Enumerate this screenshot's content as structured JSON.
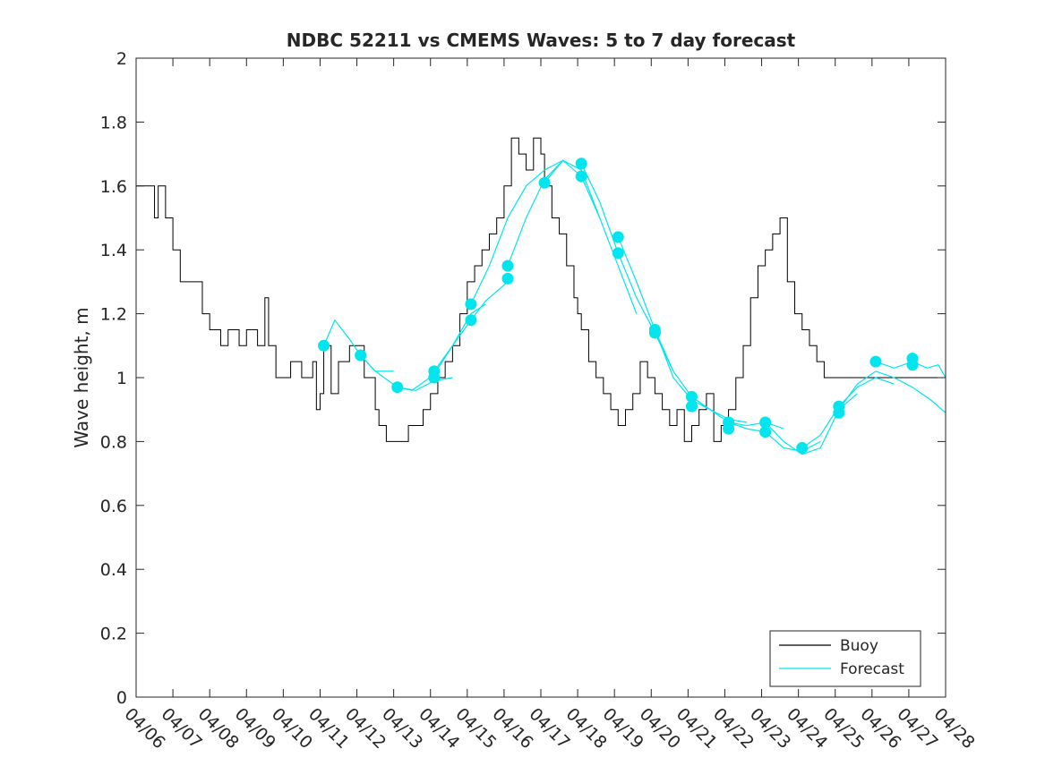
{
  "chart_data": {
    "type": "line",
    "title": "NDBC 52211 vs CMEMS Waves: 5 to 7 day forecast",
    "xlabel": "",
    "ylabel": "Wave height, m",
    "xlim": [
      "04/06",
      "04/28"
    ],
    "ylim": [
      0,
      2
    ],
    "x_ticks": [
      "04/06",
      "04/07",
      "04/08",
      "04/09",
      "04/10",
      "04/11",
      "04/12",
      "04/13",
      "04/14",
      "04/15",
      "04/16",
      "04/17",
      "04/18",
      "04/19",
      "04/20",
      "04/21",
      "04/22",
      "04/23",
      "04/24",
      "04/25",
      "04/26",
      "04/27",
      "04/28"
    ],
    "y_ticks": [
      0,
      0.2,
      0.4,
      0.6,
      0.8,
      1,
      1.2,
      1.4,
      1.6,
      1.8,
      2
    ],
    "y_tick_labels": [
      "0",
      "0.2",
      "0.4",
      "0.6",
      "0.8",
      "1",
      "1.2",
      "1.4",
      "1.6",
      "1.8",
      "2"
    ],
    "grid": false,
    "legend_position": "bottom-right",
    "series": [
      {
        "name": "Buoy",
        "color": "#000000",
        "x_days": [
          0,
          0.3,
          0.5,
          0.6,
          0.8,
          1.0,
          1.2,
          1.5,
          1.8,
          2.0,
          2.3,
          2.5,
          2.8,
          3.0,
          3.3,
          3.5,
          3.6,
          3.8,
          4.0,
          4.2,
          4.5,
          4.8,
          4.9,
          5.0,
          5.1,
          5.3,
          5.5,
          5.8,
          6.0,
          6.2,
          6.5,
          6.6,
          6.8,
          7.0,
          7.2,
          7.4,
          7.6,
          7.8,
          8.0,
          8.2,
          8.4,
          8.6,
          8.8,
          9.0,
          9.2,
          9.4,
          9.6,
          9.8,
          10.0,
          10.2,
          10.4,
          10.6,
          10.8,
          11.0,
          11.1,
          11.3,
          11.5,
          11.7,
          11.9,
          12.0,
          12.1,
          12.3,
          12.5,
          12.7,
          12.9,
          13.1,
          13.3,
          13.5,
          13.7,
          13.9,
          14.1,
          14.3,
          14.5,
          14.7,
          14.9,
          15.1,
          15.3,
          15.5,
          15.7,
          15.9,
          16.1,
          16.3,
          16.5,
          16.7,
          16.9,
          17.1,
          17.3,
          17.5,
          17.7,
          17.9,
          18.1,
          18.3,
          18.5,
          18.7,
          18.9,
          19.1,
          19.3,
          19.5,
          19.7,
          19.9,
          20.1,
          20.3,
          20.5,
          20.7,
          20.9,
          21.1,
          21.3,
          21.5,
          21.7,
          22.0
        ],
        "values": [
          1.6,
          1.6,
          1.5,
          1.6,
          1.5,
          1.4,
          1.3,
          1.3,
          1.2,
          1.15,
          1.1,
          1.15,
          1.1,
          1.15,
          1.1,
          1.25,
          1.1,
          1.0,
          1.0,
          1.05,
          1.0,
          1.05,
          0.9,
          0.95,
          1.1,
          0.95,
          1.05,
          1.1,
          1.1,
          1.0,
          0.9,
          0.85,
          0.8,
          0.8,
          0.8,
          0.85,
          0.85,
          0.9,
          0.95,
          1.0,
          1.05,
          1.1,
          1.2,
          1.3,
          1.35,
          1.4,
          1.45,
          1.5,
          1.6,
          1.75,
          1.7,
          1.65,
          1.75,
          1.7,
          1.6,
          1.5,
          1.45,
          1.35,
          1.25,
          1.2,
          1.15,
          1.05,
          1.0,
          0.95,
          0.9,
          0.85,
          0.9,
          0.95,
          1.05,
          1.0,
          0.95,
          0.9,
          0.85,
          0.9,
          0.8,
          0.85,
          0.9,
          0.95,
          0.8,
          0.85,
          0.9,
          1.0,
          1.1,
          1.25,
          1.35,
          1.4,
          1.45,
          1.5,
          1.3,
          1.2,
          1.15,
          1.1,
          1.05,
          1.0,
          1.0,
          1.0,
          1.0,
          1.0,
          1.0,
          1.0,
          1.0,
          1.0,
          1.0,
          1.0,
          1.0,
          1.0,
          1.0,
          1.0,
          1.0,
          1.0
        ]
      },
      {
        "name": "Forecast",
        "color": "#00e5ee",
        "runs": [
          {
            "x_days": [
              5.1,
              5.4,
              5.8,
              6.1,
              6.5,
              7.0
            ],
            "values": [
              1.1,
              1.18,
              1.12,
              1.07,
              1.02,
              1.02
            ]
          },
          {
            "x_days": [
              6.1,
              6.5,
              7.1,
              7.6,
              8.1,
              8.6
            ],
            "values": [
              1.07,
              1.02,
              0.97,
              0.96,
              0.99,
              1.0
            ]
          },
          {
            "x_days": [
              7.1,
              7.5,
              8.1,
              8.6,
              9.1,
              9.5
            ],
            "values": [
              0.97,
              0.96,
              1.01,
              1.1,
              1.2,
              1.23
            ]
          },
          {
            "x_days": [
              8.1,
              8.6,
              9.1,
              9.5,
              10.1
            ],
            "values": [
              1.02,
              1.1,
              1.18,
              1.24,
              1.3
            ]
          },
          {
            "x_days": [
              9.1,
              9.6,
              10.1,
              10.6,
              11.1,
              11.6
            ],
            "values": [
              1.23,
              1.35,
              1.5,
              1.6,
              1.65,
              1.68
            ]
          },
          {
            "x_days": [
              10.1,
              10.6,
              11.1,
              11.6,
              12.1,
              12.6
            ],
            "values": [
              1.35,
              1.5,
              1.62,
              1.68,
              1.65,
              1.5
            ]
          },
          {
            "x_days": [
              11.1,
              11.6,
              12.1,
              12.6,
              13.1,
              13.6
            ],
            "values": [
              1.61,
              1.68,
              1.63,
              1.5,
              1.35,
              1.2
            ]
          },
          {
            "x_days": [
              12.1,
              12.6,
              13.1,
              13.6,
              14.1,
              14.6
            ],
            "values": [
              1.67,
              1.55,
              1.39,
              1.25,
              1.14,
              1.02
            ]
          },
          {
            "x_days": [
              13.1,
              13.6,
              14.1,
              14.6,
              15.1,
              15.6
            ],
            "values": [
              1.44,
              1.3,
              1.15,
              1.0,
              0.93,
              0.9
            ]
          },
          {
            "x_days": [
              14.1,
              14.6,
              15.1,
              15.6,
              16.1,
              16.6
            ],
            "values": [
              1.15,
              1.02,
              0.94,
              0.9,
              0.87,
              0.86
            ]
          },
          {
            "x_days": [
              15.1,
              15.6,
              16.1,
              16.6,
              17.1,
              17.6
            ],
            "values": [
              0.94,
              0.9,
              0.86,
              0.85,
              0.86,
              0.84
            ]
          },
          {
            "x_days": [
              16.1,
              16.6,
              17.1,
              17.6,
              18.1,
              18.6
            ],
            "values": [
              0.86,
              0.84,
              0.83,
              0.78,
              0.77,
              0.8
            ]
          },
          {
            "x_days": [
              17.1,
              17.6,
              18.1,
              18.6,
              19.1,
              19.6
            ],
            "values": [
              0.86,
              0.8,
              0.76,
              0.78,
              0.9,
              0.95
            ]
          },
          {
            "x_days": [
              18.1,
              18.6,
              19.1,
              19.6,
              20.1,
              20.6
            ],
            "values": [
              0.78,
              0.82,
              0.91,
              0.97,
              1.0,
              0.98
            ]
          },
          {
            "x_days": [
              19.1,
              19.6,
              20.1,
              20.6,
              21.1,
              21.6,
              22.0
            ],
            "values": [
              0.9,
              0.98,
              1.02,
              1.0,
              0.97,
              0.93,
              0.89
            ]
          },
          {
            "x_days": [
              20.1,
              20.6,
              21.1,
              21.5,
              21.8,
              22.0
            ],
            "values": [
              1.05,
              1.03,
              1.05,
              1.03,
              1.04,
              1.0
            ]
          }
        ],
        "marker_x_days": [
          5.1,
          6.1,
          7.1,
          8.1,
          8.1,
          9.1,
          9.1,
          10.1,
          10.1,
          11.1,
          12.1,
          12.1,
          13.1,
          13.1,
          14.1,
          14.1,
          15.1,
          15.1,
          16.1,
          16.1,
          17.1,
          17.1,
          18.1,
          19.1,
          19.1,
          20.1,
          21.1,
          21.1
        ],
        "marker_values": [
          1.1,
          1.07,
          0.97,
          1.02,
          1.0,
          1.23,
          1.18,
          1.35,
          1.31,
          1.61,
          1.67,
          1.63,
          1.44,
          1.39,
          1.15,
          1.14,
          0.94,
          0.91,
          0.86,
          0.84,
          0.86,
          0.83,
          0.78,
          0.91,
          0.89,
          1.05,
          1.06,
          1.04
        ]
      }
    ]
  }
}
